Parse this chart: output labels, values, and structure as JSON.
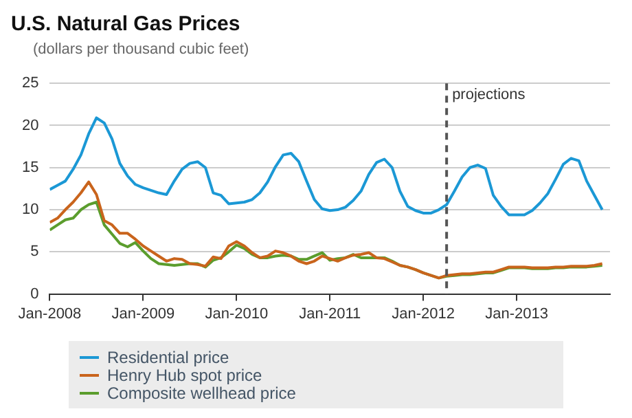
{
  "chart_data": {
    "type": "line",
    "title": "U.S. Natural Gas Prices",
    "ylabel": "(dollars per thousand cubic feet)",
    "x": [
      "2008-01",
      "2008-02",
      "2008-03",
      "2008-04",
      "2008-05",
      "2008-06",
      "2008-07",
      "2008-08",
      "2008-09",
      "2008-10",
      "2008-11",
      "2008-12",
      "2009-01",
      "2009-02",
      "2009-03",
      "2009-04",
      "2009-05",
      "2009-06",
      "2009-07",
      "2009-08",
      "2009-09",
      "2009-10",
      "2009-11",
      "2009-12",
      "2010-01",
      "2010-02",
      "2010-03",
      "2010-04",
      "2010-05",
      "2010-06",
      "2010-07",
      "2010-08",
      "2010-09",
      "2010-10",
      "2010-11",
      "2010-12",
      "2011-01",
      "2011-02",
      "2011-03",
      "2011-04",
      "2011-05",
      "2011-06",
      "2011-07",
      "2011-08",
      "2011-09",
      "2011-10",
      "2011-11",
      "2011-12",
      "2012-01",
      "2012-02",
      "2012-03",
      "2012-04",
      "2012-05",
      "2012-06",
      "2012-07",
      "2012-08",
      "2012-09",
      "2012-10",
      "2012-11",
      "2012-12",
      "2013-01",
      "2013-02",
      "2013-03",
      "2013-04",
      "2013-05",
      "2013-06",
      "2013-07",
      "2013-08",
      "2013-09",
      "2013-10",
      "2013-11",
      "2013-12"
    ],
    "series": [
      {
        "name": "Residential price",
        "color": "#1b98d5",
        "values": [
          12.4,
          12.9,
          13.4,
          14.8,
          16.5,
          19.0,
          20.9,
          20.3,
          18.4,
          15.5,
          14.0,
          13.0,
          12.6,
          12.3,
          12.0,
          11.8,
          13.4,
          14.8,
          15.5,
          15.7,
          15.0,
          12.0,
          11.7,
          10.7,
          10.8,
          10.9,
          11.2,
          12.0,
          13.3,
          15.1,
          16.5,
          16.7,
          15.7,
          13.4,
          11.2,
          10.1,
          9.9,
          10.0,
          10.3,
          11.1,
          12.2,
          14.2,
          15.6,
          16.0,
          15.0,
          12.2,
          10.4,
          9.9,
          9.6,
          9.6,
          10.0,
          10.6,
          12.2,
          13.9,
          15.0,
          15.3,
          14.9,
          11.7,
          10.4,
          9.4,
          9.4,
          9.4,
          9.9,
          10.8,
          11.9,
          13.6,
          15.4,
          16.1,
          15.8,
          13.4,
          11.7,
          10.0
        ]
      },
      {
        "name": "Henry Hub spot price",
        "color": "#c9641c",
        "values": [
          8.5,
          9.0,
          10.0,
          10.9,
          12.0,
          13.3,
          11.8,
          8.7,
          8.2,
          7.2,
          7.2,
          6.5,
          5.7,
          5.1,
          4.5,
          3.9,
          4.2,
          4.1,
          3.6,
          3.5,
          3.3,
          4.4,
          4.2,
          5.7,
          6.2,
          5.7,
          4.9,
          4.3,
          4.5,
          5.1,
          4.9,
          4.5,
          3.9,
          3.6,
          3.9,
          4.5,
          4.2,
          3.9,
          4.3,
          4.6,
          4.7,
          4.9,
          4.3,
          4.2,
          3.8,
          3.4,
          3.2,
          2.9,
          2.5,
          2.2,
          1.9,
          2.2,
          2.3,
          2.4,
          2.4,
          2.5,
          2.6,
          2.6,
          2.9,
          3.2,
          3.2,
          3.2,
          3.1,
          3.1,
          3.1,
          3.2,
          3.2,
          3.3,
          3.3,
          3.3,
          3.4,
          3.6
        ]
      },
      {
        "name": "Composite wellhead price",
        "color": "#5b9d2d",
        "values": [
          7.6,
          8.2,
          8.8,
          9.0,
          10.0,
          10.6,
          10.9,
          8.2,
          7.1,
          6.0,
          5.6,
          6.1,
          5.1,
          4.2,
          3.6,
          3.5,
          3.4,
          3.5,
          3.6,
          3.6,
          3.2,
          4.0,
          4.3,
          5.0,
          5.8,
          5.4,
          4.7,
          4.3,
          4.3,
          4.5,
          4.6,
          4.5,
          4.1,
          4.1,
          4.5,
          4.9,
          4.0,
          4.2,
          4.3,
          4.7,
          4.3,
          4.3,
          4.3,
          4.3,
          3.9,
          3.4,
          3.2,
          2.9,
          2.5,
          2.2,
          1.9,
          2.1,
          2.2,
          2.3,
          2.3,
          2.4,
          2.5,
          2.5,
          2.8,
          3.1,
          3.1,
          3.1,
          3.0,
          3.0,
          3.0,
          3.1,
          3.1,
          3.2,
          3.2,
          3.2,
          3.3,
          3.4
        ]
      }
    ],
    "xlim": [
      "2008-01",
      "2014-01"
    ],
    "xticks": [
      {
        "value": "2008-01",
        "label": "Jan-2008"
      },
      {
        "value": "2009-01",
        "label": "Jan-2009"
      },
      {
        "value": "2010-01",
        "label": "Jan-2010"
      },
      {
        "value": "2011-01",
        "label": "Jan-2011"
      },
      {
        "value": "2012-01",
        "label": "Jan-2012"
      },
      {
        "value": "2013-01",
        "label": "Jan-2013"
      }
    ],
    "ylim": [
      0,
      25
    ],
    "yticks": [
      0,
      5,
      10,
      15,
      20,
      25
    ],
    "ref_lines": [
      {
        "axis": "x",
        "value": "2012-04",
        "label": "projections",
        "color": "#555555",
        "line_style": "dashed"
      }
    ],
    "grid": "y",
    "legend": "bottom",
    "marker": "none",
    "line_style": "solid"
  }
}
